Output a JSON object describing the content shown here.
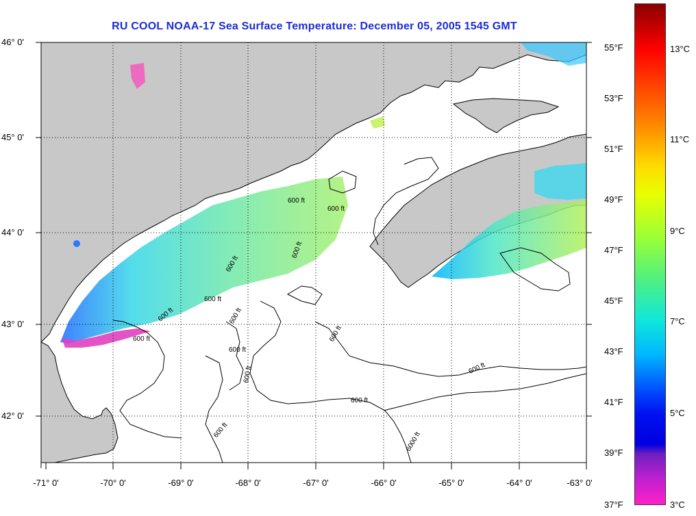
{
  "title": "RU COOL  NOAA-17  Sea Surface Temperature:  December 05, 2005 1545 GMT",
  "lat_labels": [
    "46° 0'",
    "45° 0'",
    "44° 0'",
    "43° 0'",
    "42° 0'"
  ],
  "lon_labels": [
    "-71° 0'",
    "-70° 0'",
    "-69° 0'",
    "-68° 0'",
    "-67° 0'",
    "-66° 0'",
    "-65° 0'",
    "-64° 0'",
    "-63° 0'"
  ],
  "contour_labels": [
    "600 ft",
    "600 ft",
    "600 ft",
    "600 ft",
    "600 ft",
    "600 ft",
    "600 ft",
    "600 ft",
    "600 ft",
    "600 ft",
    "600 ft",
    "600 ft",
    "600 ft",
    "600 ft",
    "6000 ft"
  ],
  "colorbar": {
    "fahrenheit_labels": [
      "55°F",
      "53°F",
      "51°F",
      "49°F",
      "47°F",
      "45°F",
      "43°F",
      "41°F",
      "39°F",
      "37°F"
    ],
    "celsius_labels": [
      "13°C",
      "11°C",
      "9°C",
      "7°C",
      "5°C",
      "3°C"
    ],
    "range_celsius": [
      3,
      14
    ]
  },
  "colors": {
    "title": "#1a2bd6",
    "land": "#c8c8c8",
    "water": "#ffffff",
    "coastline": "#000000"
  }
}
